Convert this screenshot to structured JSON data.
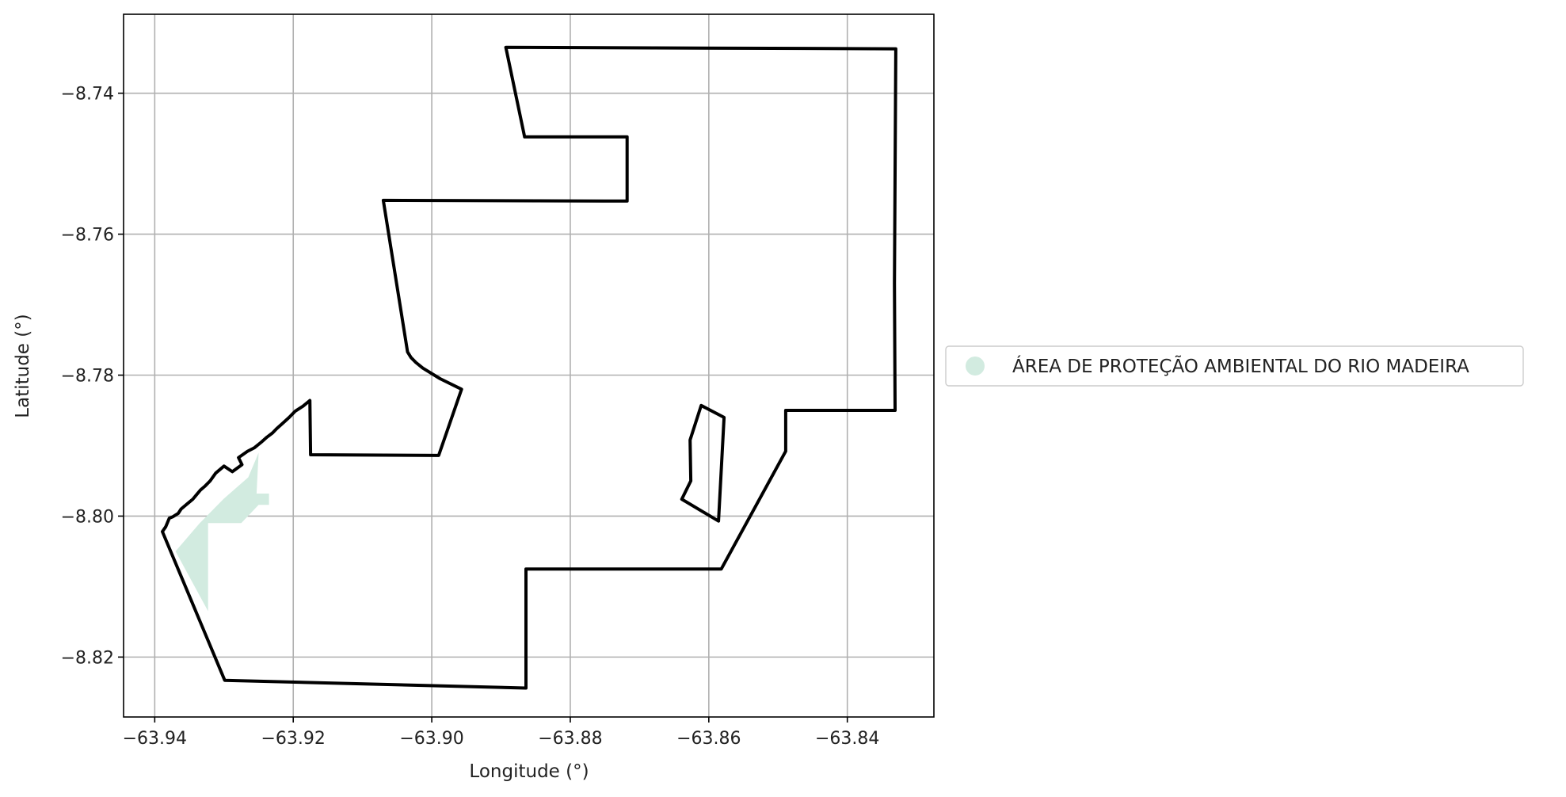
{
  "chart_data": {
    "type": "map",
    "title": "",
    "xlabel": "Longitude (°)",
    "ylabel": "Latitude (°)",
    "xlim": [
      -63.9445,
      -63.8275
    ],
    "ylim": [
      -8.8285,
      -8.7288
    ],
    "grid": true,
    "x_ticks": [
      {
        "value": -63.94,
        "label": "−63.94"
      },
      {
        "value": -63.92,
        "label": "−63.92"
      },
      {
        "value": -63.9,
        "label": "−63.90"
      },
      {
        "value": -63.88,
        "label": "−63.88"
      },
      {
        "value": -63.86,
        "label": "−63.86"
      },
      {
        "value": -63.84,
        "label": "−63.84"
      }
    ],
    "y_ticks": [
      {
        "value": -8.74,
        "label": "−8.74"
      },
      {
        "value": -8.76,
        "label": "−8.76"
      },
      {
        "value": -8.78,
        "label": "−8.78"
      },
      {
        "value": -8.8,
        "label": "−8.80"
      },
      {
        "value": -8.82,
        "label": "−8.82"
      }
    ],
    "legend": {
      "placement": "right-center",
      "entries": [
        {
          "label": "ÁREA DE PROTEÇÃO AMBIENTAL DO RIO MADEIRA",
          "color": "#d2ebe0",
          "marker": "circle"
        }
      ]
    },
    "series": [
      {
        "name": "boundary",
        "kind": "outline",
        "color": "#000000",
        "rings": [
          [
            [
              -63.8893,
              -8.7335
            ],
            [
              -63.833,
              -8.7337
            ],
            [
              -63.8332,
              -8.767
            ],
            [
              -63.8331,
              -8.785
            ],
            [
              -63.8489,
              -8.785
            ],
            [
              -63.8489,
              -8.7908
            ],
            [
              -63.8582,
              -8.8075
            ],
            [
              -63.8864,
              -8.8075
            ],
            [
              -63.8864,
              -8.8244
            ],
            [
              -63.9299,
              -8.8233
            ],
            [
              -63.9389,
              -8.8022
            ],
            [
              -63.9384,
              -8.8015
            ],
            [
              -63.9379,
              -8.8003
            ],
            [
              -63.9374,
              -8.8001
            ],
            [
              -63.9366,
              -8.7996
            ],
            [
              -63.9362,
              -8.799
            ],
            [
              -63.9356,
              -8.7985
            ],
            [
              -63.935,
              -8.798
            ],
            [
              -63.9345,
              -8.7976
            ],
            [
              -63.934,
              -8.797
            ],
            [
              -63.9334,
              -8.7963
            ],
            [
              -63.9327,
              -8.7957
            ],
            [
              -63.932,
              -8.795
            ],
            [
              -63.9312,
              -8.7939
            ],
            [
              -63.93,
              -8.7929
            ],
            [
              -63.9288,
              -8.7937
            ],
            [
              -63.9274,
              -8.7927
            ],
            [
              -63.9279,
              -8.7917
            ],
            [
              -63.9266,
              -8.7908
            ],
            [
              -63.9256,
              -8.7903
            ],
            [
              -63.9246,
              -8.7895
            ],
            [
              -63.9238,
              -8.7888
            ],
            [
              -63.923,
              -8.7882
            ],
            [
              -63.9224,
              -8.7876
            ],
            [
              -63.9216,
              -8.7869
            ],
            [
              -63.9206,
              -8.786
            ],
            [
              -63.9197,
              -8.7851
            ],
            [
              -63.9186,
              -8.7844
            ],
            [
              -63.9176,
              -8.7836
            ],
            [
              -63.9175,
              -8.7913
            ],
            [
              -63.899,
              -8.7914
            ],
            [
              -63.8957,
              -8.782
            ],
            [
              -63.8988,
              -8.7805
            ],
            [
              -63.9013,
              -8.779
            ],
            [
              -63.9023,
              -8.7782
            ],
            [
              -63.903,
              -8.7775
            ],
            [
              -63.9035,
              -8.7767
            ],
            [
              -63.907,
              -8.7552
            ],
            [
              -63.8718,
              -8.7553
            ],
            [
              -63.8718,
              -8.7462
            ],
            [
              -63.8866,
              -8.7462
            ],
            [
              -63.8893,
              -8.7335
            ]
          ],
          [
            [
              -63.8611,
              -8.7843
            ],
            [
              -63.8578,
              -8.786
            ],
            [
              -63.8586,
              -8.8007
            ],
            [
              -63.8639,
              -8.7976
            ],
            [
              -63.8626,
              -8.795
            ],
            [
              -63.8627,
              -8.7892
            ],
            [
              -63.8611,
              -8.7843
            ]
          ]
        ]
      },
      {
        "name": "ÁREA DE PROTEÇÃO AMBIENTAL DO RIO MADEIRA",
        "kind": "filled-area",
        "color": "#d2ebe0",
        "rings": [
          [
            [
              -63.937,
              -8.805
            ],
            [
              -63.9335,
              -8.801
            ],
            [
              -63.93,
              -8.7975
            ],
            [
              -63.9265,
              -8.7945
            ],
            [
              -63.925,
              -8.791
            ],
            [
              -63.9253,
              -8.7968
            ],
            [
              -63.9235,
              -8.7968
            ],
            [
              -63.9235,
              -8.7984
            ],
            [
              -63.925,
              -8.7984
            ],
            [
              -63.9275,
              -8.801
            ],
            [
              -63.9323,
              -8.801
            ],
            [
              -63.9323,
              -8.8135
            ],
            [
              -63.937,
              -8.805
            ]
          ]
        ]
      }
    ]
  }
}
